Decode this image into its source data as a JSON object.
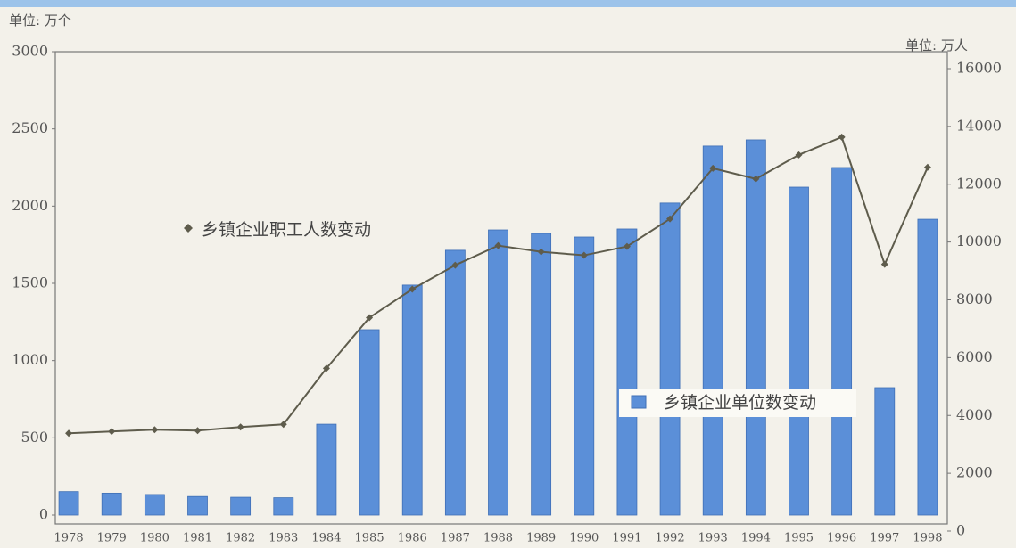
{
  "chart_data": {
    "type": "bar_line",
    "unit_left": "单位: 万个",
    "unit_right": "单位: 万人",
    "categories": [
      "1978",
      "1979",
      "1980",
      "1981",
      "1982",
      "1983",
      "1984",
      "1985",
      "1986",
      "1987",
      "1988",
      "1989",
      "1990",
      "1991",
      "1992",
      "1993",
      "1994",
      "1995",
      "1996",
      "1997",
      "1998"
    ],
    "series": [
      {
        "name": "乡镇企业单位数变动",
        "type": "bar",
        "color": "#5b8fd8",
        "values": [
          152,
          142,
          133,
          120,
          115,
          112,
          588,
          1200,
          1489,
          1714,
          1846,
          1823,
          1800,
          1852,
          2020,
          2389,
          2429,
          2123,
          2250,
          825,
          1915
        ]
      },
      {
        "name": "乡镇企业职工人数变动",
        "type": "line",
        "axis": "y2",
        "color": "#5e5c4c",
        "values": [
          3385,
          3446,
          3508,
          3477,
          3600,
          3692,
          5630,
          7385,
          8370,
          9200,
          9877,
          9660,
          9540,
          9846,
          10800,
          12550,
          12185,
          13015,
          13630,
          9230,
          12585
        ]
      }
    ],
    "ylim": [
      0,
      3000
    ],
    "yticks": [
      0,
      500,
      1000,
      1500,
      2000,
      2500,
      3000
    ],
    "y2lim": [
      0,
      16000
    ],
    "y2ticks": [
      0,
      2000,
      4000,
      6000,
      8000,
      10000,
      12000,
      14000,
      16000
    ]
  }
}
